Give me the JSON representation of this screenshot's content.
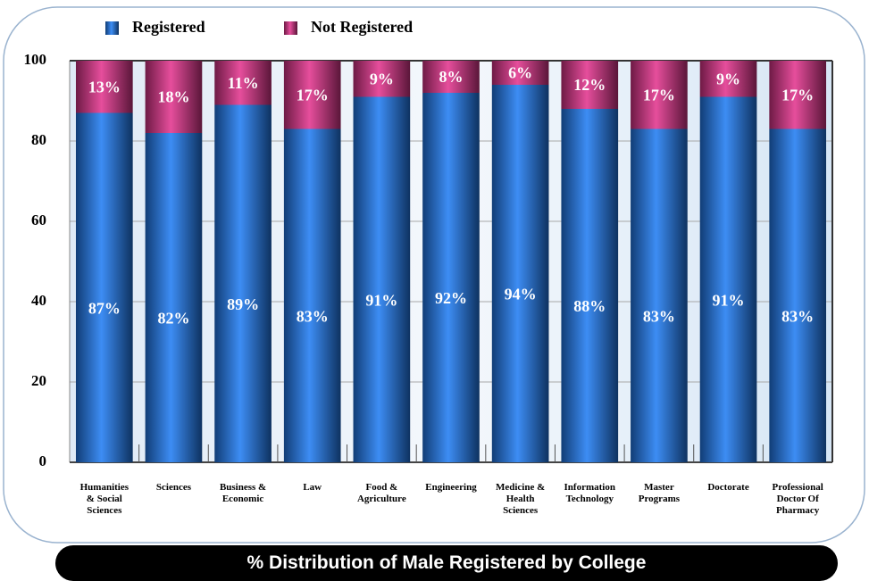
{
  "chart_data": {
    "type": "stacked_bar",
    "title": "% Distribution of  Male Registered by College",
    "categories": [
      "Humanities\n& Social\nSciences",
      "Sciences",
      "Business &\nEconomic",
      "Law",
      "Food &\nAgriculture",
      "Engineering",
      "Medicine &\nHealth\nSciences",
      "Information\nTechnology",
      "Master\nPrograms",
      "Doctorate",
      "Professional\nDoctor Of\nPharmacy"
    ],
    "series": [
      {
        "name": "Registered",
        "color": "#1f6fd6",
        "values": [
          87,
          82,
          89,
          83,
          91,
          92,
          94,
          88,
          83,
          91,
          83
        ],
        "value_labels": [
          "87%",
          "82%",
          "89%",
          "83%",
          "91%",
          "92%",
          "94%",
          "88%",
          "83%",
          "91%",
          "83%"
        ]
      },
      {
        "name": "Not Registered",
        "color": "#c8307e",
        "values": [
          13,
          18,
          11,
          17,
          9,
          8,
          6,
          12,
          17,
          9,
          17
        ],
        "value_labels": [
          "13%",
          "18%",
          "11%",
          "17%",
          "9%",
          "8%",
          "6%",
          "12%",
          "17%",
          "9%",
          "17%"
        ]
      }
    ],
    "ylim": [
      0,
      100
    ],
    "yticks": [
      0,
      20,
      40,
      60,
      80,
      100
    ],
    "grid": true,
    "legend": "top"
  }
}
